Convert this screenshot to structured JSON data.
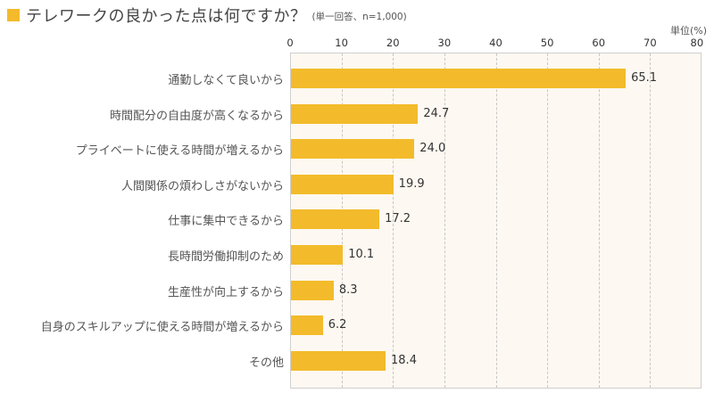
{
  "header": {
    "title": "テレワークの良かった点は何ですか？",
    "note": "(単一回答、n=1,000)",
    "unit": "単位(%)",
    "accent_color": "#f3bb2b"
  },
  "chart_data": {
    "type": "bar",
    "orientation": "horizontal",
    "title": "テレワークの良かった点は何ですか？",
    "subtitle": "(単一回答、n=1,000)",
    "xlabel": "単位(%)",
    "ylabel": "",
    "xlim": [
      0,
      80
    ],
    "x_ticks": [
      "0",
      "10",
      "20",
      "30",
      "40",
      "50",
      "60",
      "70",
      "80"
    ],
    "grid": true,
    "legend": null,
    "bar_color": "#f3bb2b",
    "plot_background": "#fdf8f1",
    "categories": [
      "通勤しなくて良いから",
      "時間配分の自由度が高くなるから",
      "プライベートに使える時間が増えるから",
      "人間関係の煩わしさがないから",
      "仕事に集中できるから",
      "長時間労働抑制のため",
      "生産性が向上するから",
      "自身のスキルアップに使える時間が増えるから",
      "その他"
    ],
    "values": [
      65.1,
      24.7,
      24.0,
      19.9,
      17.2,
      10.1,
      8.3,
      6.2,
      18.4
    ],
    "value_labels": [
      "65.1",
      "24.7",
      "24.0",
      "19.9",
      "17.2",
      "10.1",
      "8.3",
      "6.2",
      "18.4"
    ]
  }
}
